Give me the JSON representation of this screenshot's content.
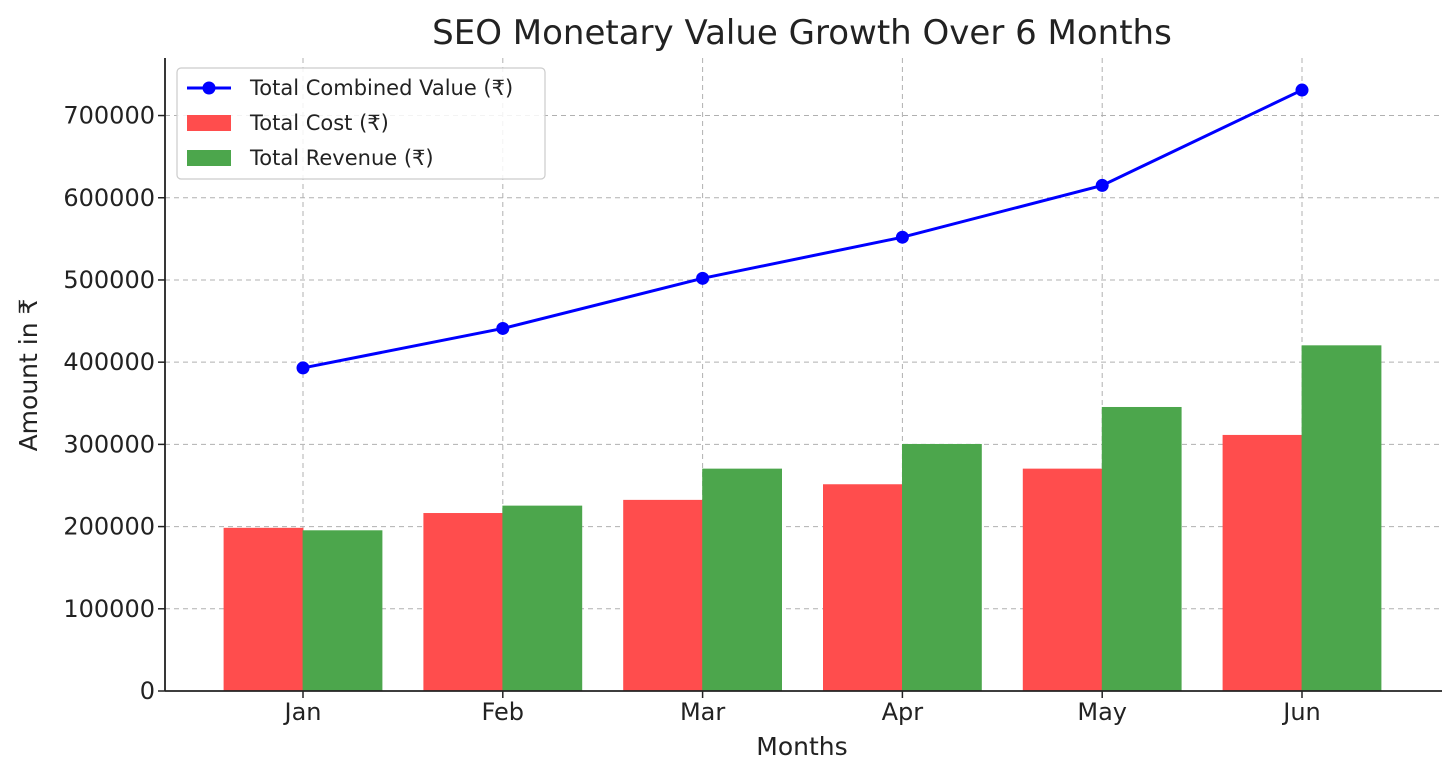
{
  "chart_data": {
    "type": "bar",
    "title": "SEO Monetary Value Growth Over 6 Months",
    "xlabel": "Months",
    "ylabel": "Amount in ₹",
    "categories": [
      "Jan",
      "Feb",
      "Mar",
      "Apr",
      "May",
      "Jun"
    ],
    "ylim": [
      0,
      770000
    ],
    "yticks": [
      0,
      100000,
      200000,
      300000,
      400000,
      500000,
      600000,
      700000
    ],
    "ytick_labels": [
      "0",
      "100000",
      "200000",
      "300000",
      "400000",
      "500000",
      "600000",
      "700000"
    ],
    "grid": true,
    "legend_position": "top-left",
    "series": [
      {
        "name": "Total Cost (₹)",
        "type": "bar",
        "color": "#ff4d4d",
        "values": [
          198000,
          216000,
          232000,
          251000,
          270000,
          311000
        ]
      },
      {
        "name": "Total Revenue (₹)",
        "type": "bar",
        "color": "#4ca64c",
        "values": [
          195000,
          225000,
          270000,
          300000,
          345000,
          420000
        ]
      },
      {
        "name": "Total Combined Value (₹)",
        "type": "line",
        "color": "#0000ff",
        "values": [
          393000,
          441000,
          502000,
          552000,
          615000,
          731000
        ]
      }
    ],
    "legend_order": [
      "Total Combined Value (₹)",
      "Total Cost (₹)",
      "Total Revenue (₹)"
    ]
  }
}
